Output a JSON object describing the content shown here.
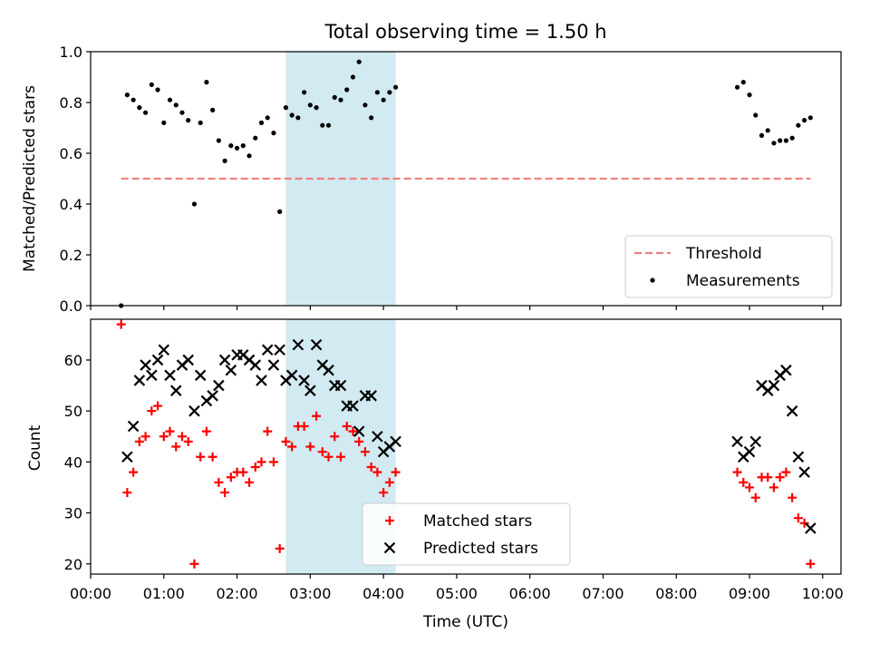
{
  "chart_data": [
    {
      "type": "scatter",
      "title": "Total observing time = 1.50 h",
      "ylabel": "Matched/Predicted stars",
      "xlabel": "",
      "ylim": [
        0,
        1.0
      ],
      "yticks": [
        "0.0",
        "0.2",
        "0.4",
        "0.6",
        "0.8",
        "1.0"
      ],
      "shaded_region": {
        "from": "02:40",
        "to": "04:10",
        "color": "#add8e6"
      },
      "legend_position": "lower-right",
      "series": [
        {
          "name": "Threshold",
          "kind": "dashed-line",
          "color": "#f08080",
          "x": [
            "00:25",
            "09:50"
          ],
          "y": [
            0.5,
            0.5
          ]
        },
        {
          "name": "Measurements",
          "kind": "dot",
          "color": "#000000",
          "x": [
            "00:25",
            "00:30",
            "00:35",
            "00:40",
            "00:45",
            "00:50",
            "00:55",
            "01:00",
            "01:05",
            "01:10",
            "01:15",
            "01:20",
            "01:25",
            "01:30",
            "01:35",
            "01:40",
            "01:45",
            "01:50",
            "01:55",
            "02:00",
            "02:05",
            "02:10",
            "02:15",
            "02:20",
            "02:25",
            "02:30",
            "02:35",
            "02:40",
            "02:45",
            "02:50",
            "02:55",
            "03:00",
            "03:05",
            "03:10",
            "03:15",
            "03:20",
            "03:25",
            "03:30",
            "03:35",
            "03:40",
            "03:45",
            "03:50",
            "03:55",
            "04:00",
            "04:05",
            "04:10",
            "08:50",
            "08:55",
            "09:00",
            "09:05",
            "09:10",
            "09:15",
            "09:20",
            "09:25",
            "09:30",
            "09:35",
            "09:40",
            "09:45",
            "09:50"
          ],
          "y": [
            0.0,
            0.83,
            0.81,
            0.78,
            0.76,
            0.87,
            0.85,
            0.72,
            0.81,
            0.79,
            0.76,
            0.73,
            0.4,
            0.72,
            0.88,
            0.77,
            0.65,
            0.57,
            0.63,
            0.62,
            0.63,
            0.59,
            0.66,
            0.72,
            0.74,
            0.68,
            0.37,
            0.78,
            0.75,
            0.74,
            0.84,
            0.79,
            0.78,
            0.71,
            0.71,
            0.82,
            0.81,
            0.85,
            0.9,
            0.96,
            0.79,
            0.74,
            0.84,
            0.81,
            0.84,
            0.86,
            0.86,
            0.88,
            0.83,
            0.75,
            0.67,
            0.69,
            0.64,
            0.65,
            0.65,
            0.66,
            0.71,
            0.73,
            0.74
          ]
        }
      ]
    },
    {
      "type": "scatter",
      "xlabel": "Time (UTC)",
      "ylabel": "Count",
      "ylim": [
        18,
        68
      ],
      "yticks": [
        "20",
        "30",
        "40",
        "50",
        "60"
      ],
      "xlim": [
        "00:00",
        "10:15"
      ],
      "xticks": [
        "00:00",
        "01:00",
        "02:00",
        "03:00",
        "04:00",
        "05:00",
        "06:00",
        "07:00",
        "08:00",
        "09:00",
        "10:00"
      ],
      "shaded_region": {
        "from": "02:40",
        "to": "04:10",
        "color": "#add8e6"
      },
      "legend_position": "lower-center",
      "series": [
        {
          "name": "Matched stars",
          "kind": "plus",
          "color": "#ff0000",
          "x": [
            "00:25",
            "00:30",
            "00:35",
            "00:40",
            "00:45",
            "00:50",
            "00:55",
            "01:00",
            "01:05",
            "01:10",
            "01:15",
            "01:20",
            "01:25",
            "01:30",
            "01:35",
            "01:40",
            "01:45",
            "01:50",
            "01:55",
            "02:00",
            "02:05",
            "02:10",
            "02:15",
            "02:20",
            "02:25",
            "02:30",
            "02:35",
            "02:40",
            "02:45",
            "02:50",
            "02:55",
            "03:00",
            "03:05",
            "03:10",
            "03:15",
            "03:20",
            "03:25",
            "03:30",
            "03:35",
            "03:40",
            "03:45",
            "03:50",
            "03:55",
            "04:00",
            "04:05",
            "04:10",
            "08:50",
            "08:55",
            "09:00",
            "09:05",
            "09:10",
            "09:15",
            "09:20",
            "09:25",
            "09:30",
            "09:35",
            "09:40",
            "09:45",
            "09:50"
          ],
          "y": [
            67,
            34,
            38,
            44,
            45,
            50,
            51,
            45,
            46,
            43,
            45,
            44,
            20,
            41,
            46,
            41,
            36,
            34,
            37,
            38,
            38,
            36,
            39,
            40,
            46,
            40,
            23,
            44,
            43,
            47,
            47,
            43,
            49,
            42,
            41,
            45,
            41,
            47,
            46,
            44,
            42,
            39,
            38,
            34,
            36,
            38,
            38,
            36,
            35,
            33,
            37,
            37,
            35,
            37,
            38,
            33,
            29,
            28,
            20
          ]
        },
        {
          "name": "Predicted stars",
          "kind": "x",
          "color": "#000000",
          "x": [
            "00:30",
            "00:35",
            "00:40",
            "00:45",
            "00:50",
            "00:55",
            "01:00",
            "01:05",
            "01:10",
            "01:15",
            "01:20",
            "01:25",
            "01:30",
            "01:35",
            "01:40",
            "01:45",
            "01:50",
            "01:55",
            "02:00",
            "02:05",
            "02:10",
            "02:15",
            "02:20",
            "02:25",
            "02:30",
            "02:35",
            "02:40",
            "02:45",
            "02:50",
            "02:55",
            "03:00",
            "03:05",
            "03:10",
            "03:15",
            "03:20",
            "03:25",
            "03:30",
            "03:35",
            "03:40",
            "03:45",
            "03:50",
            "03:55",
            "04:00",
            "04:05",
            "04:10",
            "08:50",
            "08:55",
            "09:00",
            "09:05",
            "09:10",
            "09:15",
            "09:20",
            "09:25",
            "09:30",
            "09:35",
            "09:40",
            "09:45",
            "09:50"
          ],
          "y": [
            41,
            47,
            56,
            59,
            57,
            60,
            62,
            57,
            54,
            59,
            60,
            50,
            57,
            52,
            53,
            55,
            60,
            58,
            61,
            61,
            60,
            59,
            56,
            62,
            59,
            62,
            56,
            57,
            63,
            56,
            54,
            63,
            59,
            58,
            55,
            55,
            51,
            51,
            46,
            53,
            53,
            45,
            42,
            43,
            44,
            44,
            41,
            42,
            44,
            55,
            54,
            55,
            57,
            58,
            50,
            41,
            38,
            27
          ]
        }
      ]
    }
  ]
}
